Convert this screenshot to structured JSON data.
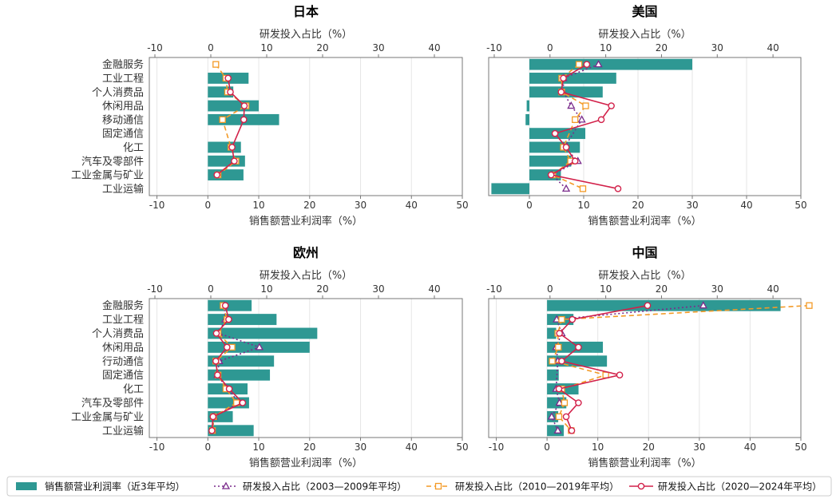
{
  "legend": {
    "items": [
      {
        "id": "bar",
        "label": "销售额营业利润率（近3年平均）"
      },
      {
        "id": "s1",
        "label": "研发投入占比（2003—2009年平均）"
      },
      {
        "id": "s2",
        "label": "研发投入占比（2010—2019年平均）"
      },
      {
        "id": "s3",
        "label": "研发投入占比（2020—2024年平均）"
      }
    ]
  },
  "colors": {
    "bar": "#2e9893",
    "s1": "#7b2c8c",
    "s2": "#f39a26",
    "s3": "#d2214a",
    "grid": "#e6e6e6",
    "axis": "#777777"
  },
  "axes": {
    "top_label": "研发投入占比（%）",
    "bottom_label": "销售额营业利润率（%）",
    "top_ticks": [
      -10,
      0,
      10,
      20,
      30,
      40
    ],
    "bottom_ticks": [
      -10,
      0,
      10,
      20,
      30,
      40,
      50
    ]
  },
  "chart_data": [
    {
      "type": "bar",
      "title": "日本",
      "categories": [
        "金融服务",
        "工业工程",
        "个人消费品",
        "休闲用品",
        "移动通信",
        "固定通信",
        "化工",
        "汽车及零部件",
        "工业金属与矿业",
        "工业运输"
      ],
      "xlim": [
        -11.5,
        50
      ],
      "top_xlim": [
        -11,
        45
      ],
      "bar_values": [
        null,
        8,
        5,
        10,
        14,
        null,
        6.5,
        7.3,
        7,
        null
      ],
      "series": [
        {
          "name": "研发投入占比（2003—2009年平均）",
          "values": [
            null,
            null,
            null,
            null,
            null,
            null,
            null,
            null,
            null,
            null
          ]
        },
        {
          "name": "研发投入占比（2010—2019年平均）",
          "values": [
            0.9,
            2.7,
            3,
            6.3,
            2.1,
            null,
            3.6,
            4.5,
            1.3,
            null
          ]
        },
        {
          "name": "研发投入占比（2020—2024年平均）",
          "values": [
            null,
            3.1,
            3.5,
            6,
            5.9,
            null,
            3.8,
            4.2,
            1.1,
            null
          ]
        }
      ]
    },
    {
      "type": "bar",
      "title": "美国",
      "categories": [
        "金融服务",
        "工业工程",
        "个人消费品",
        "休闲用品",
        "移动通信",
        "固定通信",
        "化工",
        "汽车及零部件",
        "工业金属与矿业",
        "工业运输"
      ],
      "xlim": [
        -7.5,
        50
      ],
      "top_xlim": [
        -11,
        45
      ],
      "bar_values": [
        30,
        16,
        13.5,
        -0.5,
        -0.7,
        10.3,
        9.3,
        7.7,
        5.8,
        -7
      ],
      "series": [
        {
          "name": "研发投入占比（2003—2009年平均）",
          "values": [
            8.7,
            2.4,
            2.4,
            3.8,
            5.7,
            null,
            2.6,
            5,
            0.4,
            2.9
          ]
        },
        {
          "name": "研发投入占比（2010—2019年平均）",
          "values": [
            5.2,
            2.1,
            2.1,
            6.4,
            4.5,
            null,
            2.4,
            3.7,
            0.5,
            5.9
          ]
        },
        {
          "name": "研发投入占比（2020—2024年平均）",
          "values": [
            6.6,
            2.4,
            2,
            11,
            9.2,
            0.9,
            2.9,
            4.5,
            0.2,
            12.2
          ]
        }
      ]
    },
    {
      "type": "bar",
      "title": "欧州",
      "categories": [
        "金融服务",
        "工业工程",
        "个人消费品",
        "休闲用品",
        "行动通信",
        "固定通信",
        "化工",
        "汽车及零部件",
        "工业金属与矿业",
        "工业运输"
      ],
      "xlim": [
        -11.5,
        50
      ],
      "top_xlim": [
        -11,
        45
      ],
      "bar_values": [
        8.6,
        13.5,
        21.5,
        20,
        13,
        12.2,
        7.8,
        8.1,
        4.9,
        9
      ],
      "series": [
        {
          "name": "研发投入占比（2003—2009年平均）",
          "values": [
            2.4,
            2.6,
            1.4,
            8.7,
            1.5,
            1.2,
            3,
            5.1,
            0.6,
            0.3
          ]
        },
        {
          "name": "研发投入占比（2010—2019年平均）",
          "values": [
            2.2,
            2.9,
            1.3,
            3.8,
            0.9,
            1.3,
            2.7,
            4.6,
            0.5,
            0.3
          ]
        },
        {
          "name": "研发投入占比（2020—2024年平均）",
          "values": [
            2.6,
            3.2,
            1,
            2.9,
            0.9,
            1.2,
            3.3,
            5.7,
            0.4,
            0.2
          ]
        }
      ]
    },
    {
      "type": "bar",
      "title": "中国",
      "categories": [
        "金融服务",
        "工业工程",
        "个人消费品",
        "休闲用品",
        "行动通信",
        "固定通信",
        "化工",
        "汽车及零部件",
        "工业金属与矿业",
        "工业运输"
      ],
      "xlim": [
        -11.5,
        50
      ],
      "top_xlim": [
        -11,
        45
      ],
      "bar_values": [
        46,
        5.2,
        1.8,
        11,
        11.8,
        2.3,
        6.2,
        3.8,
        2.2,
        3.3
      ],
      "series": [
        {
          "name": "研发投入占比（2003—2009年平均）",
          "values": [
            27.5,
            1.2,
            2.1,
            1.1,
            1.4,
            null,
            1.1,
            1.7,
            0.3,
            1.4
          ]
        },
        {
          "name": "研发投入占比（2010—2019年平均）",
          "values": [
            46.5,
            2.1,
            1.4,
            1.5,
            0.4,
            10,
            2.1,
            2.6,
            1.6,
            3.8
          ]
        },
        {
          "name": "研发投入占比（2020—2024年平均）",
          "values": [
            17.5,
            4,
            1.7,
            5.1,
            2.1,
            12.5,
            1.6,
            5.1,
            2.9,
            3.9
          ]
        }
      ]
    }
  ]
}
